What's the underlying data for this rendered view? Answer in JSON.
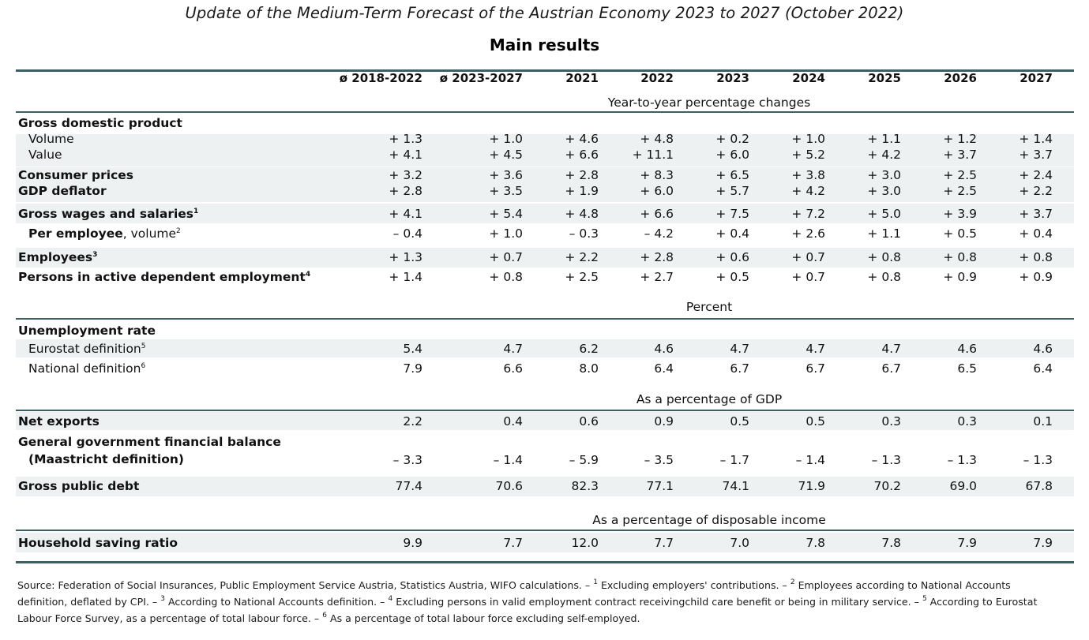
{
  "title": "Update of the Medium-Term Forecast of the Austrian Economy 2023 to 2027 (October 2022)",
  "subtitle": "Main results",
  "columns": [
    "ø 2018-2022",
    "ø 2023-2027",
    "2021",
    "2022",
    "2023",
    "2024",
    "2025",
    "2026",
    "2027"
  ],
  "sections": {
    "yoy": "Year-to-year percentage changes",
    "percent": "Percent",
    "gdp_pct": "As a percentage of GDP",
    "disp_income": "As a percentage of disposable income"
  },
  "rows": {
    "gdp": {
      "label": "Gross domestic product"
    },
    "volume": {
      "label": "Volume",
      "values": [
        "+ 1.3",
        "+ 1.0",
        "+ 4.6",
        "+ 4.8",
        "+ 0.2",
        "+ 1.0",
        "+ 1.1",
        "+ 1.2",
        "+ 1.4"
      ]
    },
    "value": {
      "label": "Value",
      "values": [
        "+ 4.1",
        "+ 4.5",
        "+ 6.6",
        "+ 11.1",
        "+ 6.0",
        "+ 5.2",
        "+ 4.2",
        "+ 3.7",
        "+ 3.7"
      ]
    },
    "cpi": {
      "label": "Consumer prices",
      "values": [
        "+ 3.2",
        "+ 3.6",
        "+ 2.8",
        "+ 8.3",
        "+ 6.5",
        "+ 3.8",
        "+ 3.0",
        "+ 2.5",
        "+ 2.4"
      ]
    },
    "deflator": {
      "label": "GDP deflator",
      "values": [
        "+ 2.8",
        "+ 3.5",
        "+ 1.9",
        "+ 6.0",
        "+ 5.7",
        "+ 4.2",
        "+ 3.0",
        "+ 2.5",
        "+ 2.2"
      ]
    },
    "wages": {
      "label": "Gross wages and salaries",
      "sup": "1",
      "values": [
        "+ 4.1",
        "+ 5.4",
        "+ 4.8",
        "+ 6.6",
        "+ 7.5",
        "+ 7.2",
        "+ 5.0",
        "+ 3.9",
        "+ 3.7"
      ]
    },
    "per_employee": {
      "label_bold": "Per employee",
      "label_rest": ", volume",
      "sup": "2",
      "values": [
        "– 0.4",
        "+ 1.0",
        "– 0.3",
        "– 4.2",
        "+ 0.4",
        "+ 2.6",
        "+ 1.1",
        "+ 0.5",
        "+ 0.4"
      ]
    },
    "employees": {
      "label": "Employees",
      "sup": "3",
      "values": [
        "+ 1.3",
        "+ 0.7",
        "+ 2.2",
        "+ 2.8",
        "+ 0.6",
        "+ 0.7",
        "+ 0.8",
        "+ 0.8",
        "+ 0.8"
      ]
    },
    "persons": {
      "label": "Persons in active dependent employment",
      "sup": "4",
      "values": [
        "+ 1.4",
        "+ 0.8",
        "+ 2.5",
        "+ 2.7",
        "+ 0.5",
        "+ 0.7",
        "+ 0.8",
        "+ 0.9",
        "+ 0.9"
      ]
    },
    "unemployment": {
      "label": "Unemployment rate"
    },
    "eurostat": {
      "label": "Eurostat definition",
      "sup": "5",
      "values": [
        "5.4",
        "4.7",
        "6.2",
        "4.6",
        "4.7",
        "4.7",
        "4.7",
        "4.6",
        "4.6"
      ]
    },
    "national": {
      "label": "National definition",
      "sup": "6",
      "values": [
        "7.9",
        "6.6",
        "8.0",
        "6.4",
        "6.7",
        "6.7",
        "6.7",
        "6.5",
        "6.4"
      ]
    },
    "net_exports": {
      "label": "Net exports",
      "values": [
        "2.2",
        "0.4",
        "0.6",
        "0.9",
        "0.5",
        "0.5",
        "0.3",
        "0.3",
        "0.1"
      ]
    },
    "gov_balance": {
      "label": "General government financial balance",
      "label2": "(Maastricht definition)",
      "values": [
        "– 3.3",
        "– 1.4",
        "– 5.9",
        "– 3.5",
        "– 1.7",
        "– 1.4",
        "– 1.3",
        "– 1.3",
        "– 1.3"
      ]
    },
    "public_debt": {
      "label": "Gross public debt",
      "values": [
        "77.4",
        "70.6",
        "82.3",
        "77.1",
        "74.1",
        "71.9",
        "70.2",
        "69.0",
        "67.8"
      ]
    },
    "saving": {
      "label": "Household saving ratio",
      "values": [
        "9.9",
        "7.7",
        "12.0",
        "7.7",
        "7.0",
        "7.8",
        "7.8",
        "7.9",
        "7.9"
      ]
    }
  },
  "footnote": {
    "part1": "Source: Federation of Social Insurances, Public Employment Service Austria, Statistics Austria, WIFO calculations. – ",
    "s1": "1",
    "part2": " Excluding employers' contributions. – ",
    "s2": "2",
    "part3": "  Employees according to National Accounts definition, deflated by CPI. – ",
    "s3": "3",
    "part4": " According to National Accounts definition. – ",
    "s4": "4",
    "part5": " Excluding persons in valid employment contract receivingchild care benefit or being in military service. – ",
    "s5": "5",
    "part6": " According to Eurostat Labour Force Survey, as a percentage of total labour force. – ",
    "s6": "6",
    "part7": " As a percentage of total labour force excluding self-employed."
  }
}
